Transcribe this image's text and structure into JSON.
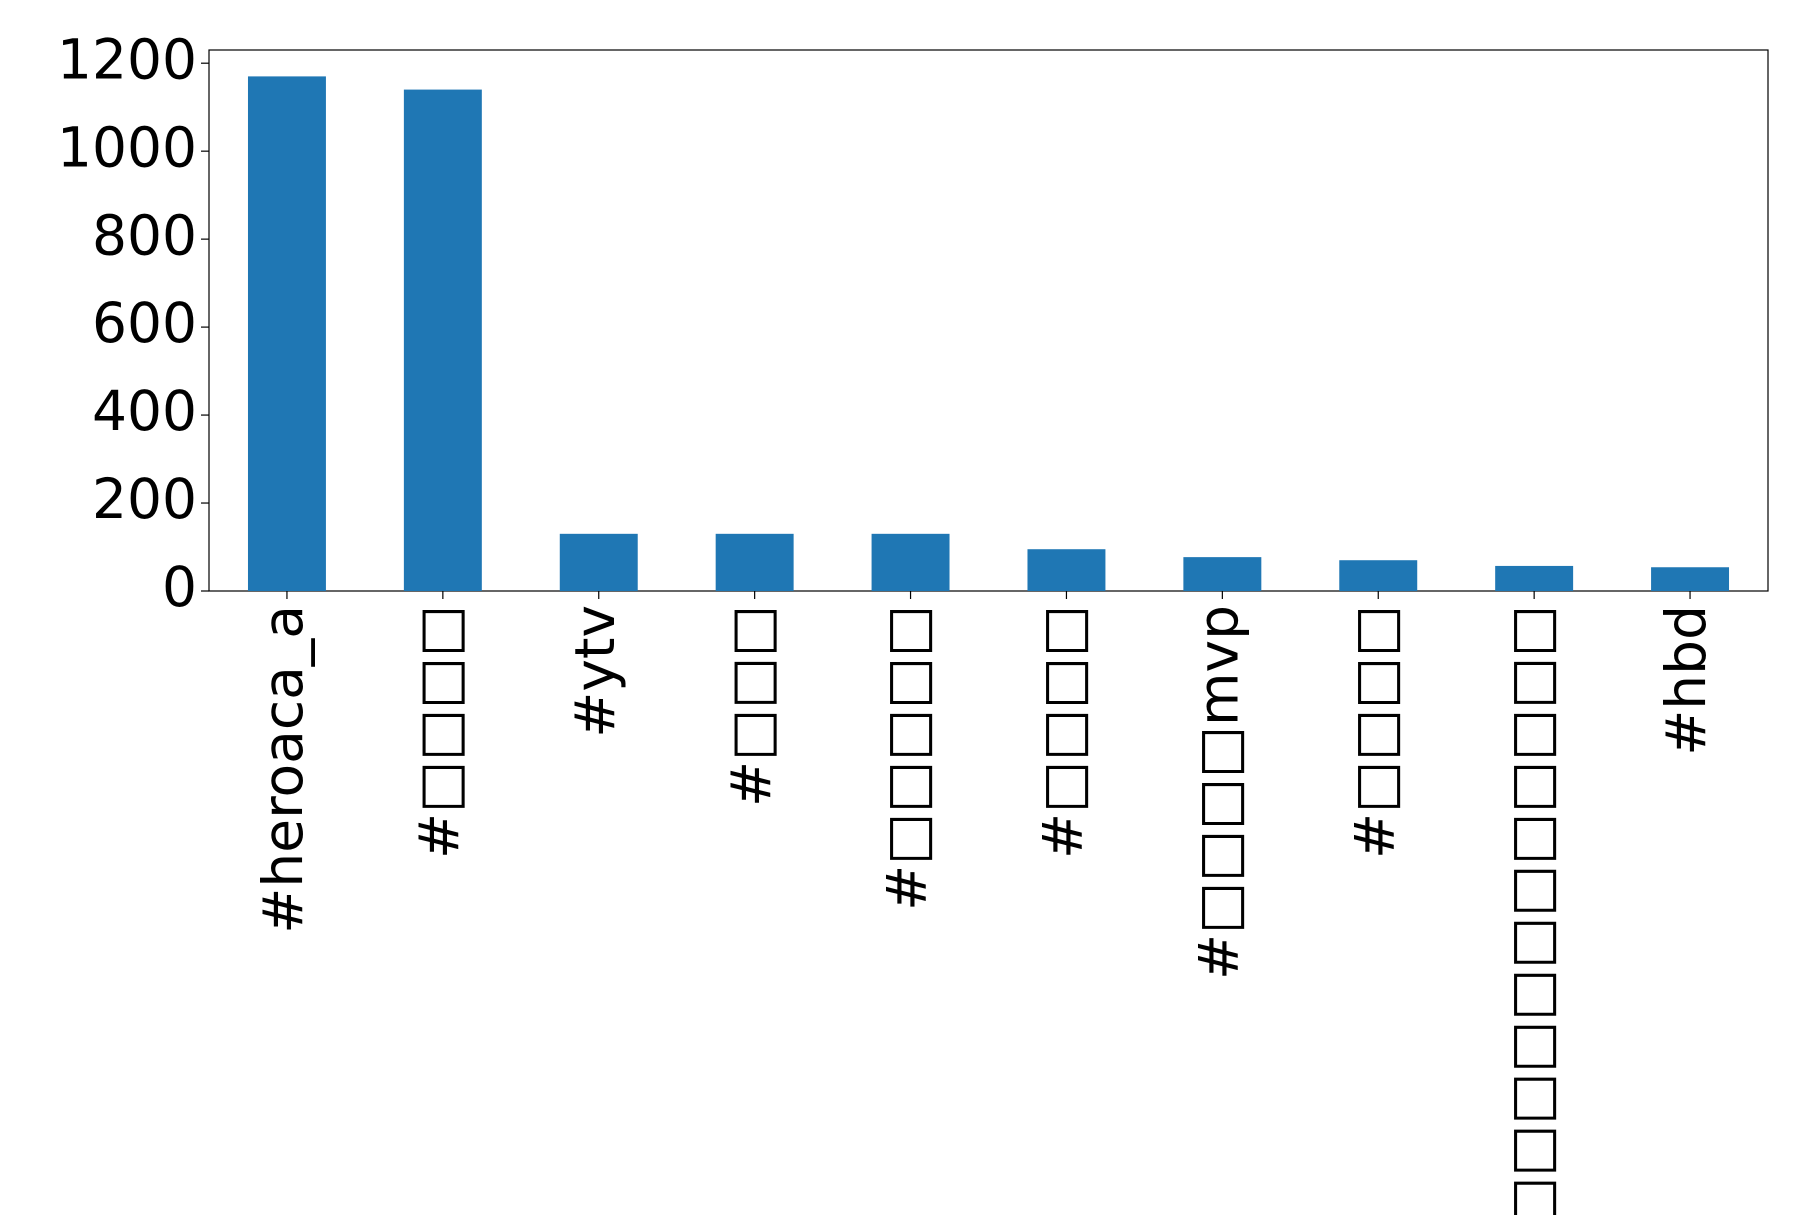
{
  "chart_data": {
    "type": "bar",
    "categories": [
      "#heroaca_a",
      "#□□□□",
      "#ytv",
      "#□□□",
      "#□□□□□",
      "#□□□□",
      "#□□□□mvp",
      "#□□□□",
      "#□□□□□□□□□□□□",
      "#hbd"
    ],
    "values": [
      1170,
      1140,
      130,
      130,
      130,
      95,
      77,
      70,
      57,
      54
    ],
    "color": "#1f77b4",
    "ylim": [
      0,
      1230
    ],
    "yticks": [
      0,
      200,
      400,
      600,
      800,
      1000,
      1200
    ],
    "grid": false
  }
}
